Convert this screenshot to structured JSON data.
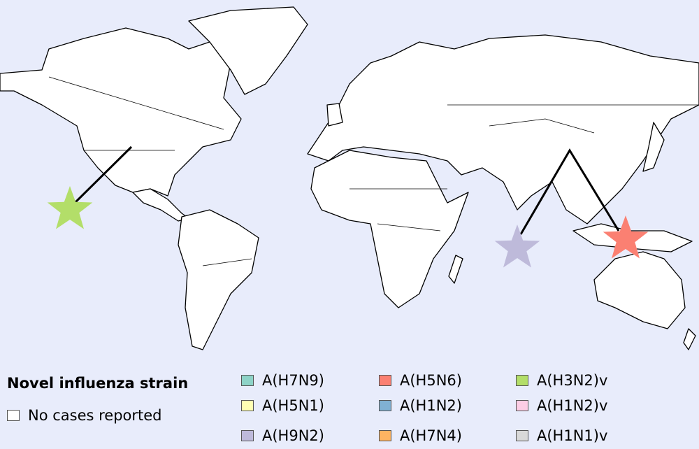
{
  "legend": {
    "title": "Novel influenza strain",
    "no_cases": {
      "label": "No cases reported",
      "color": "#ffffff"
    },
    "items": [
      {
        "label": "A(H7N9)",
        "color": "#8dd3c7"
      },
      {
        "label": "A(H5N1)",
        "color": "#ffffb3"
      },
      {
        "label": "A(H9N2)",
        "color": "#bebada"
      },
      {
        "label": "A(H5N6)",
        "color": "#fb8072"
      },
      {
        "label": "A(H1N2)",
        "color": "#80b1d3"
      },
      {
        "label": "A(H7N4)",
        "color": "#fdb462"
      },
      {
        "label": "A(H3N2)v",
        "color": "#b3de69"
      },
      {
        "label": "A(H1N2)v",
        "color": "#fccde5"
      },
      {
        "label": "A(H1N1)v",
        "color": "#d9d9d9"
      }
    ]
  },
  "markers": [
    {
      "strain": "A(H3N2)v",
      "location": "United States",
      "color": "#b3de69"
    },
    {
      "strain": "A(H9N2)",
      "location": "China",
      "color": "#bebada"
    },
    {
      "strain": "A(H5N6)",
      "location": "China",
      "color": "#fb8072"
    }
  ],
  "colors": {
    "ocean": "#e8ecfb",
    "land": "#ffffff"
  }
}
